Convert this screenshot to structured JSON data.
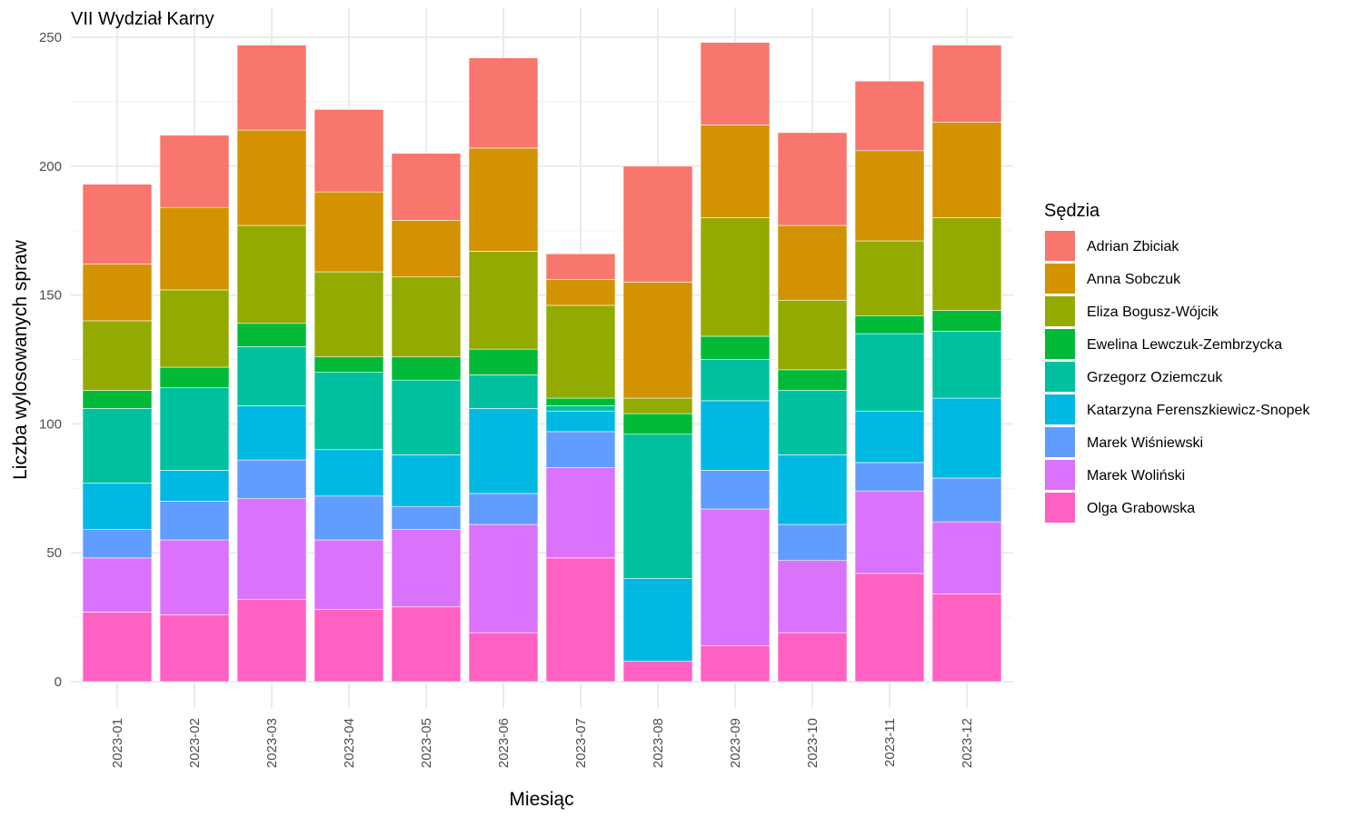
{
  "chart_data": {
    "type": "bar",
    "stacked": true,
    "title": "VII Wydział Karny",
    "xlabel": "Miesiąc",
    "ylabel": "Liczba wylosowanych spraw",
    "ylim": [
      0,
      250
    ],
    "yticks": [
      0,
      50,
      100,
      150,
      200,
      250
    ],
    "grid": true,
    "legend_title": "Sędzia",
    "legend_position": "right",
    "categories": [
      "2023-01",
      "2023-02",
      "2023-03",
      "2023-04",
      "2023-05",
      "2023-06",
      "2023-07",
      "2023-08",
      "2023-09",
      "2023-10",
      "2023-11",
      "2023-12"
    ],
    "series": [
      {
        "name": "Adrian Zbiciak",
        "color": "#F8766D",
        "values": [
          31,
          28,
          33,
          32,
          26,
          35,
          10,
          45,
          32,
          36,
          27,
          30
        ]
      },
      {
        "name": "Anna Sobczuk",
        "color": "#D39200",
        "values": [
          22,
          32,
          37,
          31,
          22,
          40,
          10,
          45,
          36,
          29,
          35,
          37
        ]
      },
      {
        "name": "Eliza Bogusz-Wójcik",
        "color": "#93AA00",
        "values": [
          27,
          30,
          38,
          33,
          31,
          38,
          36,
          6,
          46,
          27,
          29,
          36
        ]
      },
      {
        "name": "Ewelina Lewczuk-Zembrzycka",
        "color": "#00BA38",
        "values": [
          7,
          8,
          9,
          6,
          9,
          10,
          3,
          8,
          9,
          8,
          7,
          8
        ]
      },
      {
        "name": "Grzegorz Oziemczuk",
        "color": "#00C19F",
        "values": [
          29,
          32,
          23,
          30,
          29,
          13,
          2,
          56,
          16,
          25,
          30,
          26
        ]
      },
      {
        "name": "Katarzyna Ferenszkiewicz-Snopek",
        "color": "#00B9E3",
        "values": [
          18,
          12,
          21,
          18,
          20,
          33,
          8,
          32,
          27,
          27,
          20,
          31
        ]
      },
      {
        "name": "Marek Wiśniewski",
        "color": "#619CFF",
        "values": [
          11,
          15,
          15,
          17,
          9,
          12,
          14,
          0,
          15,
          14,
          11,
          17
        ]
      },
      {
        "name": "Marek Woliński",
        "color": "#DB72FB",
        "values": [
          21,
          29,
          39,
          27,
          30,
          42,
          35,
          0,
          53,
          28,
          32,
          28
        ]
      },
      {
        "name": "Olga Grabowska",
        "color": "#FF61C3",
        "values": [
          27,
          26,
          32,
          28,
          29,
          19,
          48,
          8,
          14,
          19,
          42,
          34
        ]
      }
    ]
  }
}
